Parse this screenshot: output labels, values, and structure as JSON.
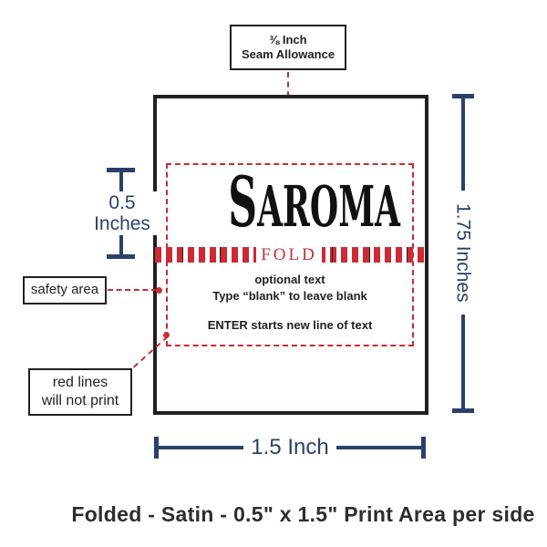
{
  "colors": {
    "red": "#cc2b33",
    "navy": "#2a3f6b",
    "ink": "#231f20"
  },
  "seam_callout": {
    "line1": "⅜ Inch",
    "line2": "Seam Allowance"
  },
  "label_preview": {
    "brand_initial": "S",
    "brand_rest": "AROMA",
    "fold_label": "FOLD",
    "optional_text_line1": "optional text",
    "optional_text_line2": "Type “blank” to leave blank",
    "optional_text_line3": "ENTER starts new line of text"
  },
  "callouts": {
    "safety_area": "safety area",
    "red_lines_line1": "red lines",
    "red_lines_line2": "will not print"
  },
  "dimensions": {
    "print_height_value": "0.5",
    "print_height_unit": "Inches",
    "label_height": "1.75 Inches",
    "label_width": "1.5 Inch"
  },
  "caption": "Folded - Satin - 0.5\" x 1.5\" Print Area per side"
}
